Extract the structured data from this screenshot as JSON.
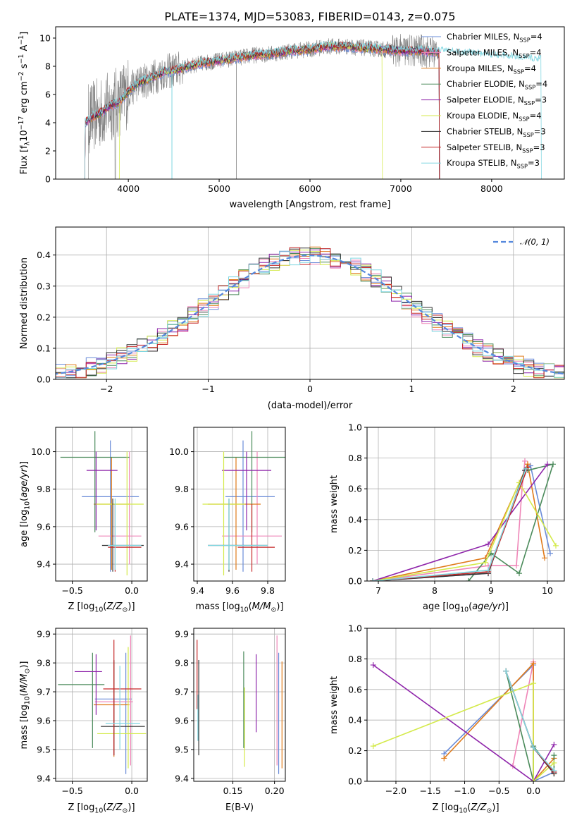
{
  "title": "PLATE=1374, MJD=53083, FIBERID=0143, z=0.075",
  "models": [
    {
      "name": "Chabrier MILES, N_SSP=4",
      "color": "#6a8cd8"
    },
    {
      "name": "Salpeter MILES, N_SSP=4",
      "color": "#ef86b8"
    },
    {
      "name": "Kroupa MILES, N_SSP=4",
      "color": "#e07b1b"
    },
    {
      "name": "Chabrier ELODIE, N_SSP=4",
      "color": "#4b8b5b"
    },
    {
      "name": "Salpeter ELODIE, N_SSP=3",
      "color": "#8e24aa"
    },
    {
      "name": "Kroupa ELODIE, N_SSP=4",
      "color": "#d4ea4b"
    },
    {
      "name": "Chabrier STELIB, N_SSP=3",
      "color": "#333333"
    },
    {
      "name": "Salpeter STELIB, N_SSP=3",
      "color": "#c62828"
    },
    {
      "name": "Kroupa STELIB, N_SSP=3",
      "color": "#7fd6e0"
    }
  ],
  "chart_data": [
    {
      "id": "spectrum",
      "type": "line",
      "xlabel": "wavelength [Angstrom, rest frame]",
      "ylabel": "Flux [fλ10^-17 erg cm^-2 s^-1 A^-1]",
      "xlim": [
        3200,
        8800
      ],
      "ylim": [
        0,
        10.8
      ],
      "xticks": [
        4000,
        5000,
        6000,
        7000,
        8000
      ],
      "yticks": [
        0,
        2,
        4,
        6,
        8,
        10
      ],
      "grid": false,
      "legend_position": "right",
      "data_series": {
        "name": "data",
        "color": "#808080",
        "x_range": [
          3520,
          7430
        ]
      },
      "continuum": {
        "x": [
          3520,
          3600,
          3700,
          3800,
          3900,
          4000,
          4100,
          4200,
          4300,
          4400,
          4500,
          4600,
          4800,
          5000,
          5200,
          5400,
          5600,
          5800,
          6000,
          6200,
          6400,
          6600,
          6800,
          7000,
          7200,
          7400,
          7600,
          7800,
          8000,
          8200,
          8500
        ],
        "y": [
          4.0,
          4.4,
          4.7,
          5.2,
          5.5,
          6.2,
          6.8,
          7.0,
          7.3,
          7.6,
          7.7,
          7.9,
          8.2,
          8.4,
          8.6,
          8.8,
          8.9,
          9.1,
          9.2,
          9.4,
          9.4,
          9.3,
          9.2,
          9.1,
          9.1,
          9.0,
          8.9,
          8.8,
          8.7,
          8.6,
          8.4
        ]
      },
      "model_x_ranges": [
        [
          3520,
          7430
        ],
        [
          3520,
          7430
        ],
        [
          3520,
          7430
        ],
        [
          3520,
          7430
        ],
        [
          3520,
          7430
        ],
        [
          3900,
          6800
        ],
        [
          3520,
          7430
        ],
        [
          3520,
          7430
        ],
        [
          3520,
          8550
        ]
      ]
    },
    {
      "id": "residuals",
      "type": "histogram",
      "xlabel": "(data-model)/error",
      "ylabel": "Normed distribution",
      "xlim": [
        -2.5,
        2.5
      ],
      "ylim": [
        0,
        0.49
      ],
      "xticks": [
        -2,
        -1,
        0,
        1,
        2
      ],
      "yticks": [
        0.0,
        0.1,
        0.2,
        0.3,
        0.4
      ],
      "grid": true,
      "legend_position": "top-right",
      "reference_curve": {
        "label": "𝒩(0, 1)",
        "color": "#5588dd",
        "mean": 0,
        "sigma": 1
      },
      "bin_width": 0.1
    },
    {
      "id": "age-vs-Z",
      "type": "errorbar",
      "xlabel": "Z [log10(Z/Z⊙)]",
      "ylabel": "age  [log10(age/yr)]",
      "xlim": [
        -0.64,
        0.13
      ],
      "ylim": [
        9.31,
        10.13
      ],
      "xticks": [
        -0.5,
        0.0
      ],
      "yticks": [
        9.4,
        9.6,
        9.8,
        10.0
      ],
      "grid": true,
      "points": [
        {
          "model": 0,
          "x": -0.18,
          "xerr": [
            0.24,
            0.24
          ],
          "y": 9.76,
          "yerr": [
            0.4,
            0.3
          ]
        },
        {
          "model": 1,
          "x": -0.02,
          "xerr": [
            0.26,
            0.1
          ],
          "y": 9.55,
          "yerr": [
            0.15,
            0.45
          ]
        },
        {
          "model": 2,
          "x": -0.17,
          "xerr": [
            0.15,
            0.15
          ],
          "y": 9.72,
          "yerr": [
            0.35,
            0.25
          ]
        },
        {
          "model": 3,
          "x": -0.31,
          "xerr": [
            0.29,
            0.29
          ],
          "y": 9.97,
          "yerr": [
            0.4,
            0.14
          ]
        },
        {
          "model": 4,
          "x": -0.3,
          "xerr": [
            0.08,
            0.18
          ],
          "y": 9.9,
          "yerr": [
            0.32,
            0.1
          ]
        },
        {
          "model": 5,
          "x": -0.04,
          "xerr": [
            0.26,
            0.14
          ],
          "y": 9.72,
          "yerr": [
            0.38,
            0.28
          ]
        },
        {
          "model": 6,
          "x": -0.16,
          "xerr": [
            0.09,
            0.26
          ],
          "y": 9.5,
          "yerr": [
            0.14,
            0.25
          ]
        },
        {
          "model": 7,
          "x": -0.14,
          "xerr": [
            0.06,
            0.22
          ],
          "y": 9.49,
          "yerr": [
            0.13,
            0.23
          ]
        },
        {
          "model": 8,
          "x": -0.14,
          "xerr": [
            0.06,
            0.22
          ],
          "y": 9.5,
          "yerr": [
            0.13,
            0.25
          ]
        }
      ]
    },
    {
      "id": "age-vs-mass",
      "type": "errorbar",
      "xlabel": "mass [log10(M/M⊙)]",
      "ylabel": "",
      "xlim": [
        9.38,
        9.9
      ],
      "ylim": [
        9.31,
        10.13
      ],
      "xticks": [
        9.4,
        9.6,
        9.8
      ],
      "yticks": [
        9.4,
        9.6,
        9.8,
        10.0
      ],
      "grid": true,
      "points": [
        {
          "model": 0,
          "x": 9.66,
          "xerr": [
            0.1,
            0.18
          ],
          "y": 9.76,
          "yerr": [
            0.4,
            0.3
          ]
        },
        {
          "model": 1,
          "x": 9.74,
          "xerr": [
            0.2,
            0.14
          ],
          "y": 9.55,
          "yerr": [
            0.15,
            0.45
          ]
        },
        {
          "model": 2,
          "x": 9.62,
          "xerr": [
            0.16,
            0.14
          ],
          "y": 9.72,
          "yerr": [
            0.35,
            0.25
          ]
        },
        {
          "model": 3,
          "x": 9.71,
          "xerr": [
            0.16,
            0.2
          ],
          "y": 9.97,
          "yerr": [
            0.4,
            0.14
          ]
        },
        {
          "model": 4,
          "x": 9.68,
          "xerr": [
            0.14,
            0.14
          ],
          "y": 9.9,
          "yerr": [
            0.32,
            0.1
          ]
        },
        {
          "model": 5,
          "x": 9.55,
          "xerr": [
            0.12,
            0.12
          ],
          "y": 9.72,
          "yerr": [
            0.38,
            0.28
          ]
        },
        {
          "model": 6,
          "x": 9.58,
          "xerr": [
            0.12,
            0.22
          ],
          "y": 9.5,
          "yerr": [
            0.14,
            0.25
          ]
        },
        {
          "model": 7,
          "x": 9.71,
          "xerr": [
            0.08,
            0.13
          ],
          "y": 9.49,
          "yerr": [
            0.13,
            0.23
          ]
        },
        {
          "model": 8,
          "x": 9.58,
          "xerr": [
            0.12,
            0.22
          ],
          "y": 9.5,
          "yerr": [
            0.13,
            0.25
          ]
        }
      ]
    },
    {
      "id": "weight-vs-age",
      "type": "line",
      "xlabel": "age  [log10(age/yr)]",
      "ylabel": "mass weight",
      "xlim": [
        6.8,
        10.3
      ],
      "ylim": [
        0,
        1.0
      ],
      "xticks": [
        7,
        8,
        9,
        10
      ],
      "yticks": [
        0.0,
        0.2,
        0.4,
        0.6,
        0.8,
        1.0
      ],
      "grid": true,
      "series": [
        {
          "model": 0,
          "x": [
            6.9,
            8.95,
            9.6,
            9.7,
            10.05
          ],
          "y": [
            0.0,
            0.05,
            0.72,
            0.75,
            0.18
          ]
        },
        {
          "model": 1,
          "x": [
            6.9,
            8.95,
            9.45,
            9.55,
            9.6
          ],
          "y": [
            0.0,
            0.1,
            0.1,
            0.6,
            0.78
          ]
        },
        {
          "model": 2,
          "x": [
            6.9,
            8.9,
            9.65,
            9.65,
            9.95
          ],
          "y": [
            0.0,
            0.15,
            0.76,
            0.76,
            0.15
          ]
        },
        {
          "model": 3,
          "x": [
            8.6,
            9.0,
            9.5,
            10.1,
            9.65
          ],
          "y": [
            0.0,
            0.18,
            0.05,
            0.76,
            0.72
          ]
        },
        {
          "model": 4,
          "x": [
            6.9,
            8.95,
            10.0
          ],
          "y": [
            0.0,
            0.24,
            0.76
          ]
        },
        {
          "model": 5,
          "x": [
            6.9,
            8.9,
            9.5,
            10.15
          ],
          "y": [
            0.0,
            0.12,
            0.64,
            0.23
          ]
        },
        {
          "model": 6,
          "x": [
            6.9,
            8.95,
            9.6
          ],
          "y": [
            0.0,
            0.05,
            0.72
          ]
        },
        {
          "model": 7,
          "x": [
            6.9,
            8.95,
            9.65
          ],
          "y": [
            0.0,
            0.06,
            0.74
          ]
        },
        {
          "model": 8,
          "x": [
            6.9,
            8.95,
            9.62
          ],
          "y": [
            0.0,
            0.07,
            0.73
          ]
        }
      ]
    },
    {
      "id": "mass-vs-Z",
      "type": "errorbar",
      "xlabel": "Z [log10(Z/Z⊙)]",
      "ylabel": "mass [log10(M/M⊙)]",
      "xlim": [
        -0.64,
        0.13
      ],
      "ylim": [
        9.39,
        9.92
      ],
      "xticks": [
        -0.5,
        0.0
      ],
      "yticks": [
        9.4,
        9.5,
        9.6,
        9.7,
        9.8,
        9.9
      ],
      "grid": true,
      "points": [
        {
          "model": 0,
          "x": -0.05,
          "xerr": [
            0.26,
            0.05
          ],
          "y": 9.675,
          "yerr": [
            0.26,
            0.16
          ]
        },
        {
          "model": 1,
          "x": -0.01,
          "xerr": [
            0.3,
            0.02
          ],
          "y": 9.665,
          "yerr": [
            0.22,
            0.23
          ]
        },
        {
          "model": 2,
          "x": -0.15,
          "xerr": [
            0.17,
            0.13
          ],
          "y": 9.655,
          "yerr": [
            0.18,
            0.15
          ]
        },
        {
          "model": 3,
          "x": -0.33,
          "xerr": [
            0.29,
            0.1
          ],
          "y": 9.725,
          "yerr": [
            0.22,
            0.11
          ]
        },
        {
          "model": 4,
          "x": -0.3,
          "xerr": [
            0.18,
            0.05
          ],
          "y": 9.77,
          "yerr": [
            0.15,
            0.06
          ]
        },
        {
          "model": 5,
          "x": -0.03,
          "xerr": [
            0.26,
            0.15
          ],
          "y": 9.555,
          "yerr": [
            0.12,
            0.3
          ]
        },
        {
          "model": 6,
          "x": -0.15,
          "xerr": [
            0.11,
            0.26
          ],
          "y": 9.58,
          "yerr": [
            0.1,
            0.23
          ]
        },
        {
          "model": 7,
          "x": -0.15,
          "xerr": [
            0.09,
            0.23
          ],
          "y": 9.71,
          "yerr": [
            0.23,
            0.17
          ]
        },
        {
          "model": 8,
          "x": -0.1,
          "xerr": [
            0.12,
            0.17
          ],
          "y": 9.59,
          "yerr": [
            0.09,
            0.2
          ]
        }
      ]
    },
    {
      "id": "mass-vs-ebv",
      "type": "errorbar",
      "xlabel": "E(B-V)",
      "ylabel": "",
      "xlim": [
        0.103,
        0.213
      ],
      "ylim": [
        9.39,
        9.92
      ],
      "xticks": [
        0.15,
        0.2
      ],
      "yticks": [
        9.4,
        9.5,
        9.6,
        9.7,
        9.8,
        9.9
      ],
      "grid": true,
      "points": [
        {
          "model": 0,
          "x": 0.205,
          "y": 9.675,
          "yerr": [
            0.26,
            0.16
          ]
        },
        {
          "model": 1,
          "x": 0.203,
          "y": 9.665,
          "yerr": [
            0.22,
            0.23
          ]
        },
        {
          "model": 2,
          "x": 0.209,
          "y": 9.655,
          "yerr": [
            0.22,
            0.15
          ]
        },
        {
          "model": 3,
          "x": 0.163,
          "y": 9.725,
          "yerr": [
            0.22,
            0.115
          ]
        },
        {
          "model": 4,
          "x": 0.178,
          "y": 9.77,
          "yerr": [
            0.21,
            0.06
          ]
        },
        {
          "model": 5,
          "x": 0.164,
          "y": 9.58,
          "yerr": [
            0.14,
            0.135
          ]
        },
        {
          "model": 6,
          "x": 0.109,
          "y": 9.58,
          "yerr": [
            0.1,
            0.23
          ]
        },
        {
          "model": 7,
          "x": 0.107,
          "y": 9.71,
          "yerr": [
            0.07,
            0.17
          ]
        },
        {
          "model": 8,
          "x": 0.108,
          "y": 9.59,
          "yerr": [
            0.06,
            0.1
          ]
        }
      ]
    },
    {
      "id": "weight-vs-Z",
      "type": "line",
      "xlabel": "Z [log10(Z/Z⊙)]",
      "ylabel": "mass weight",
      "xlim": [
        -2.42,
        0.45
      ],
      "ylim": [
        0,
        1.0
      ],
      "xticks": [
        -2.0,
        -1.5,
        -1.0,
        -0.5,
        0.0
      ],
      "yticks": [
        0.0,
        0.2,
        0.4,
        0.6,
        0.8,
        1.0
      ],
      "grid": true,
      "series": [
        {
          "model": 0,
          "x": [
            -1.3,
            0.0,
            0.0,
            0.3
          ],
          "y": [
            0.18,
            0.76,
            0.0,
            0.06
          ]
        },
        {
          "model": 1,
          "x": [
            -0.3,
            0.0,
            0.0
          ],
          "y": [
            0.1,
            0.78,
            0.0
          ]
        },
        {
          "model": 2,
          "x": [
            -1.3,
            0.0,
            0.0,
            0.3
          ],
          "y": [
            0.15,
            0.77,
            0.0,
            0.15
          ]
        },
        {
          "model": 3,
          "x": [
            -0.4,
            0.0,
            0.0,
            0.3,
            0.3
          ],
          "y": [
            0.72,
            0.0,
            0.23,
            0.05,
            0.17
          ]
        },
        {
          "model": 4,
          "x": [
            -2.33,
            0.0,
            0.3
          ],
          "y": [
            0.76,
            0.0,
            0.24
          ]
        },
        {
          "model": 5,
          "x": [
            -2.33,
            0.0,
            0.0,
            0.3
          ],
          "y": [
            0.23,
            0.64,
            0.0,
            0.12
          ]
        },
        {
          "model": 6,
          "x": [
            -0.4,
            0.0,
            0.3
          ],
          "y": [
            0.72,
            0.22,
            0.05
          ]
        },
        {
          "model": 7,
          "x": [
            -0.4,
            0.0,
            0.3
          ],
          "y": [
            0.72,
            0.22,
            0.06
          ]
        },
        {
          "model": 8,
          "x": [
            -0.4,
            0.0,
            0.3
          ],
          "y": [
            0.72,
            0.22,
            0.07
          ]
        }
      ]
    }
  ]
}
